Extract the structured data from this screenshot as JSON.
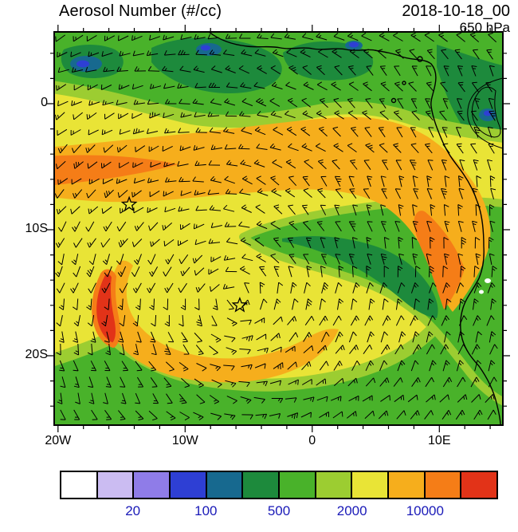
{
  "header": {
    "title": "Aerosol Number (#/cc)",
    "datetime": "2018-10-18_00",
    "level": "650 hPa"
  },
  "axes": {
    "x_ticks": [
      {
        "label": "20W",
        "value": -20
      },
      {
        "label": "10W",
        "value": -10
      },
      {
        "label": "0",
        "value": 0
      },
      {
        "label": "10E",
        "value": 10
      }
    ],
    "y_ticks": [
      {
        "label": "0",
        "value": 0
      },
      {
        "label": "10S",
        "value": -10
      },
      {
        "label": "20S",
        "value": -20
      }
    ]
  },
  "colorbar": {
    "colors": [
      "#ffffff",
      "#cbbcf2",
      "#8f7ce8",
      "#2e3fd4",
      "#17698f",
      "#1d8a3c",
      "#49b22a",
      "#9ccd31",
      "#e9e436",
      "#f6ae1c",
      "#f57d17",
      "#e23318"
    ],
    "labels": [
      {
        "text": "20",
        "boundary": 2
      },
      {
        "text": "100",
        "boundary": 4
      },
      {
        "text": "500",
        "boundary": 6
      },
      {
        "text": "2000",
        "boundary": 8
      },
      {
        "text": "10000",
        "boundary": 10
      }
    ],
    "label_color": "#1a1ab8"
  },
  "chart_data": {
    "type": "heatmap",
    "subtype": "filled-contour map with wind barb overlay",
    "title": "Aerosol Number (#/cc)",
    "valid_time": "2018-10-18_00",
    "pressure_level": "650 hPa",
    "units": "#/cc",
    "lon_range": [
      -20.3,
      15.0
    ],
    "lat_range": [
      -25.5,
      5.7
    ],
    "contour_levels": [
      10,
      20,
      50,
      100,
      200,
      500,
      1000,
      2000,
      5000,
      10000,
      20000
    ],
    "overlay": "wind barbs showing an anticyclonic gyre over the South Atlantic with easterlies near the equator",
    "markers": [
      {
        "type": "star",
        "lon": -14.4,
        "lat": -8.0
      },
      {
        "type": "star",
        "lon": -5.7,
        "lat": -16.0
      }
    ],
    "features": [
      {
        "value_range": "5000-10000",
        "color": "orange",
        "description": "aerosol plume band from the west edge near 3-7S stretching east, then curving southeast along the Angolan coast"
      },
      {
        "value_range": "2000-5000",
        "color": "yellow",
        "description": "broad region surrounding the orange plume over the central and southern tropical Atlantic"
      },
      {
        "value_range": ">10000",
        "color": "red",
        "description": "small maximum core near 17W between 14S and 17S"
      },
      {
        "value_range": "500-2000",
        "color": "green",
        "description": "background values over most of the domain and inland Africa"
      },
      {
        "value_range": "20-500",
        "color": "dark green / teal / blue",
        "description": "low-value patches along the equator, Gulf of Guinea and central Africa"
      }
    ]
  }
}
